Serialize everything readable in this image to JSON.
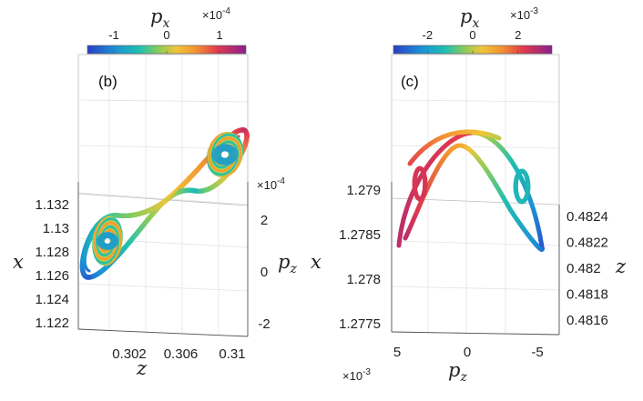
{
  "chart_data": [
    {
      "type": "line",
      "panel_label": "(b)",
      "description_axes": [
        "z",
        "p_z",
        "x"
      ],
      "colorbar": {
        "label_main": "p",
        "label_sub": "x",
        "exponent": "×10",
        "exponent_power": "-4",
        "ticks": [
          "-1",
          "0",
          "1"
        ],
        "tick_values": [
          -1,
          0,
          1
        ],
        "range": [
          -1.5,
          1.5
        ]
      },
      "z_axis": {
        "label": "z",
        "ticks": [
          "0.302",
          "0.306",
          "0.31"
        ],
        "tick_values": [
          0.302,
          0.306,
          0.31
        ]
      },
      "pz_axis": {
        "label_main": "p",
        "label_sub": "z",
        "exponent": "×10",
        "exponent_power": "-4",
        "ticks": [
          "2",
          "0",
          "-2"
        ],
        "tick_values": [
          2,
          0,
          -2
        ]
      },
      "x_axis": {
        "label": "x",
        "ticks": [
          "1.132",
          "1.13",
          "1.128",
          "1.126",
          "1.124",
          "1.122"
        ],
        "tick_values": [
          1.132,
          1.13,
          1.128,
          1.126,
          1.124,
          1.122
        ]
      }
    },
    {
      "type": "line",
      "panel_label": "(c)",
      "description_axes": [
        "p_z",
        "z",
        "x"
      ],
      "colorbar": {
        "label_main": "p",
        "label_sub": "x",
        "exponent": "×10",
        "exponent_power": "-3",
        "ticks": [
          "-2",
          "0",
          "2"
        ],
        "tick_values": [
          -2,
          0,
          2
        ],
        "range": [
          -3.5,
          3.5
        ]
      },
      "pz_axis": {
        "label_main": "p",
        "label_sub": "z",
        "exponent": "×10",
        "exponent_power": "-3",
        "ticks": [
          "5",
          "0",
          "-5"
        ],
        "tick_values": [
          5,
          0,
          -5
        ]
      },
      "z_axis": {
        "label": "z",
        "ticks": [
          "0.4824",
          "0.4822",
          "0.482",
          "0.4818",
          "0.4816"
        ],
        "tick_values": [
          0.4824,
          0.4822,
          0.482,
          0.4818,
          0.4816
        ]
      },
      "x_axis": {
        "label": "x",
        "ticks": [
          "1.279",
          "1.2785",
          "1.278",
          "1.2775"
        ],
        "tick_values": [
          1.279,
          1.2785,
          1.278,
          1.2775
        ]
      }
    }
  ]
}
